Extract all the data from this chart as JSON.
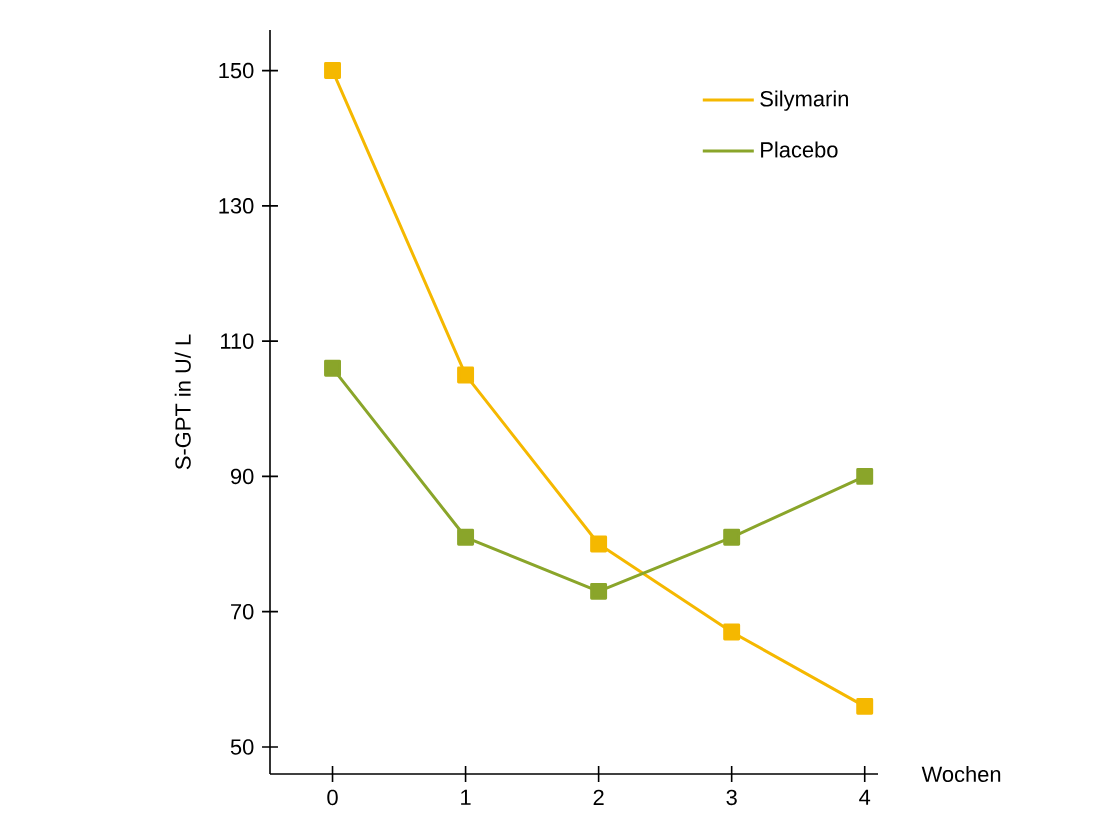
{
  "chart_data": {
    "type": "line",
    "xlabel": "Wochen",
    "ylabel": "S-GPT in U/ L",
    "x": [
      0,
      1,
      2,
      3,
      4
    ],
    "series": [
      {
        "name": "Silymarin",
        "color": "#f5b800",
        "values": [
          150,
          105,
          80,
          67,
          56
        ]
      },
      {
        "name": "Placebo",
        "color": "#8aa52a",
        "values": [
          106,
          81,
          73,
          81,
          90
        ]
      }
    ],
    "xlim": [
      -0.47,
      4.1
    ],
    "ylim": [
      46,
      156
    ],
    "xticks": [
      0,
      1,
      2,
      3,
      4
    ],
    "yticks": [
      50,
      70,
      90,
      110,
      130,
      150
    ],
    "legend": "top right",
    "marker": "square",
    "line_style": "solid",
    "grid": false
  }
}
